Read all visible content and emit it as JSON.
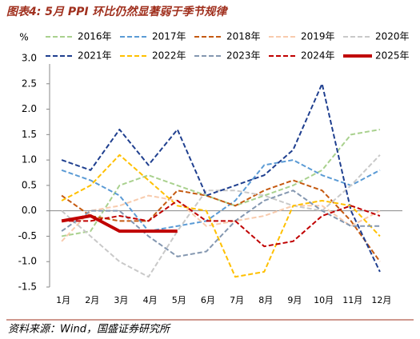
{
  "chart_data": {
    "type": "line",
    "title": "图表4:  5月 PPI 环比仍然显著弱于季节规律",
    "y_label": "%",
    "source": "资料来源：Wind，国盛证券研究所",
    "categories": [
      "1月",
      "2月",
      "3月",
      "4月",
      "5月",
      "6月",
      "7月",
      "8月",
      "9月",
      "10月",
      "11月",
      "12月"
    ],
    "ylim": [
      -1.5,
      3.0
    ],
    "yticks": [
      {
        "value": 3.0,
        "label": "3.0"
      },
      2.5,
      {
        "value": 2.0,
        "label": "2.0"
      },
      1.5,
      {
        "value": 1.0,
        "label": "1.0"
      },
      0.5,
      {
        "value": 0.0,
        "label": "0.0"
      },
      -0.5,
      {
        "value": -1.0,
        "label": "-1.0"
      },
      -1.5
    ],
    "series": [
      {
        "name": "2016年",
        "color": "#a9d18e",
        "style": "dashed",
        "values": [
          -0.5,
          -0.4,
          0.5,
          0.7,
          0.5,
          0.3,
          0.1,
          0.3,
          0.5,
          0.8,
          1.5,
          1.6
        ]
      },
      {
        "name": "2017年",
        "color": "#5b9bd5",
        "style": "dashed",
        "values": [
          0.8,
          0.6,
          0.3,
          -0.4,
          -0.3,
          -0.2,
          0.2,
          0.9,
          1.0,
          0.7,
          0.5,
          0.8
        ]
      },
      {
        "name": "2018年",
        "color": "#c55a11",
        "style": "dashed",
        "values": [
          0.3,
          -0.1,
          -0.2,
          -0.2,
          0.4,
          0.3,
          0.1,
          0.4,
          0.6,
          0.4,
          -0.2,
          -1.0
        ]
      },
      {
        "name": "2019年",
        "color": "#f8cbad",
        "style": "dashed",
        "values": [
          -0.6,
          0.0,
          0.1,
          0.3,
          0.2,
          -0.3,
          -0.2,
          -0.1,
          0.1,
          0.1,
          -0.3,
          0.0
        ]
      },
      {
        "name": "2020年",
        "color": "#c9c9c9",
        "style": "dashed",
        "values": [
          0.0,
          -0.5,
          -1.0,
          -1.3,
          -0.4,
          0.4,
          0.4,
          0.3,
          0.1,
          0.0,
          0.5,
          1.1
        ]
      },
      {
        "name": "2021年",
        "color": "#1f3f8f",
        "style": "dashed",
        "values": [
          1.0,
          0.8,
          1.6,
          0.9,
          1.6,
          0.3,
          0.5,
          0.7,
          1.2,
          2.5,
          0.0,
          -1.2
        ]
      },
      {
        "name": "2022年",
        "color": "#ffc000",
        "style": "dashed",
        "values": [
          0.2,
          0.5,
          1.1,
          0.6,
          0.1,
          0.0,
          -1.3,
          -1.2,
          0.1,
          0.2,
          0.1,
          -0.5
        ]
      },
      {
        "name": "2023年",
        "color": "#8497b0",
        "style": "dashed",
        "values": [
          -0.4,
          0.0,
          0.0,
          -0.5,
          -0.9,
          -0.8,
          -0.2,
          0.2,
          0.4,
          0.0,
          -0.3,
          -0.3
        ]
      },
      {
        "name": "2024年",
        "color": "#c00000",
        "style": "dashed",
        "values": [
          -0.2,
          -0.2,
          -0.1,
          -0.2,
          0.2,
          -0.2,
          -0.2,
          -0.7,
          -0.6,
          -0.1,
          0.1,
          -0.1
        ]
      },
      {
        "name": "2025年",
        "color": "#c00000",
        "style": "solid",
        "values": [
          -0.2,
          -0.1,
          -0.4,
          -0.4,
          -0.4,
          null,
          null,
          null,
          null,
          null,
          null,
          null
        ]
      }
    ]
  }
}
